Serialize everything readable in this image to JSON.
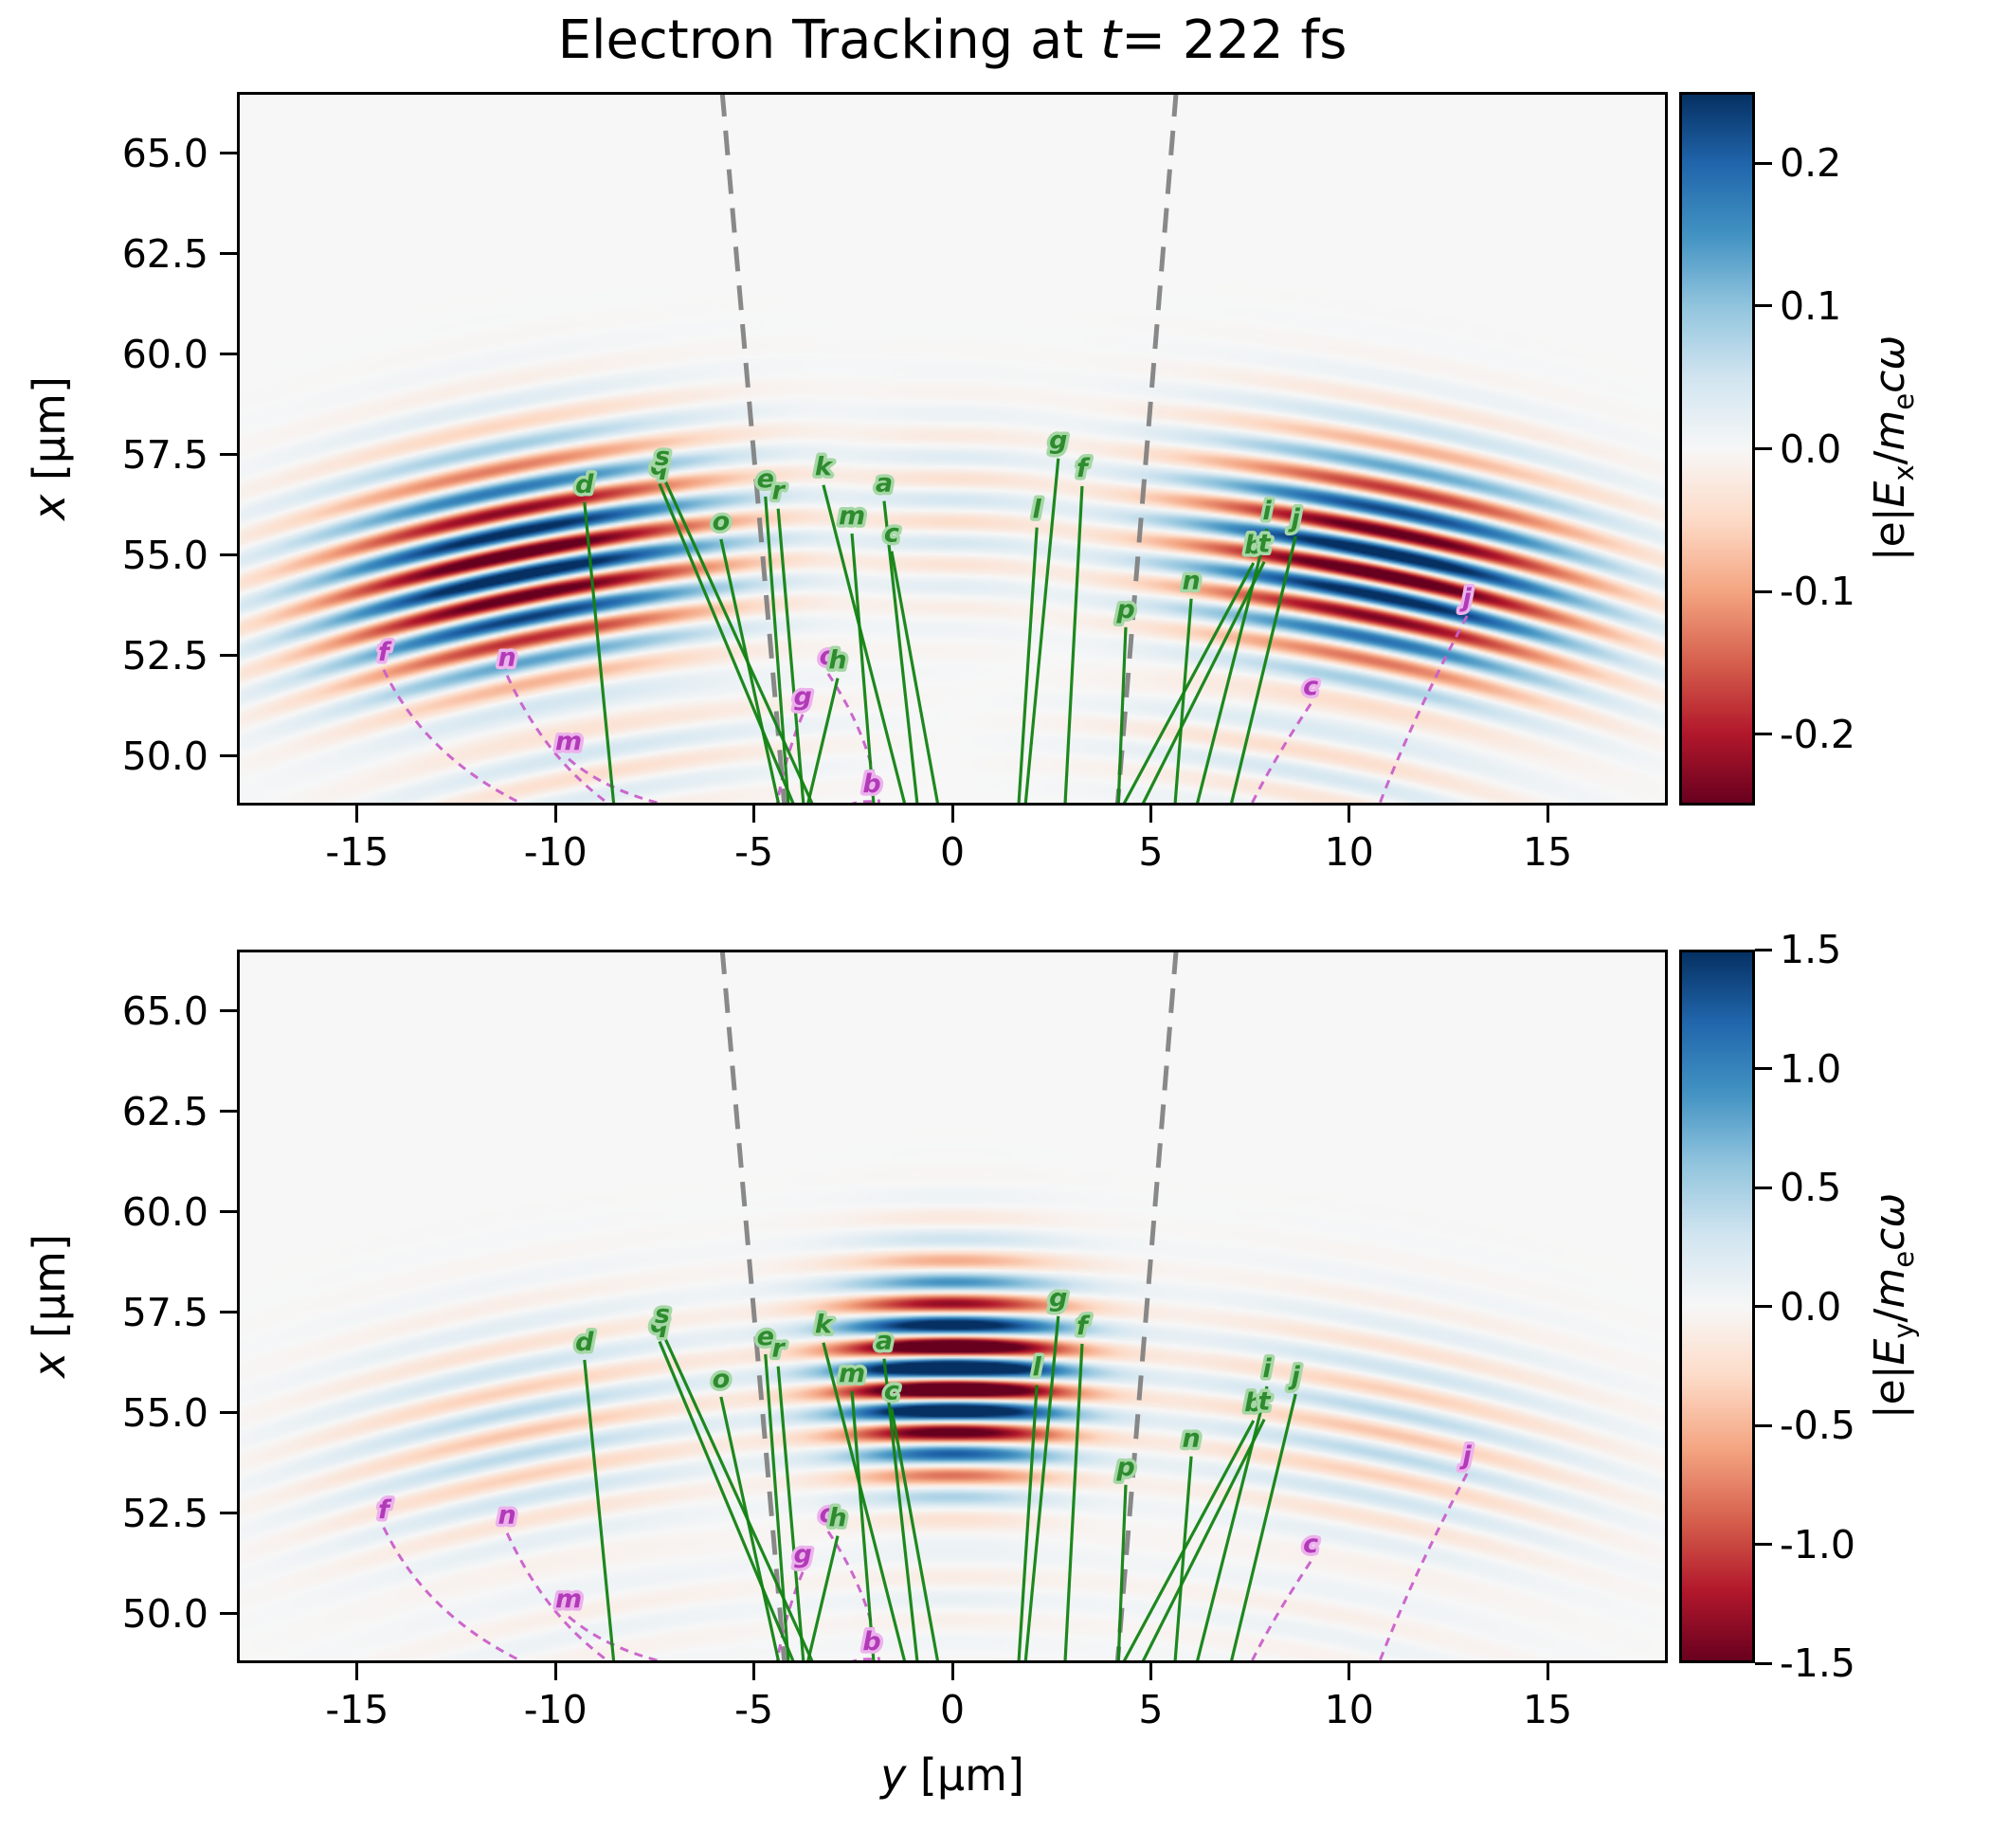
{
  "ui": {
    "title": {
      "pre": "Electron Tracking at ",
      "var": "t",
      "post": "= 222 fs"
    },
    "ylabel": {
      "var": "x",
      "rest": " [μm]"
    },
    "xlabel": {
      "var": "y",
      "rest": " [μm]"
    },
    "cbar_ex": {
      "pre": "|e|",
      "E": "E",
      "Esub": "x",
      "slash": "/",
      "m": "m",
      "msub": "e",
      "tail": "cω"
    },
    "cbar_ey": {
      "pre": "|e|",
      "E": "E",
      "Esub": "y",
      "slash": "/",
      "m": "m",
      "msub": "e",
      "tail": "cω"
    }
  },
  "chart_data": {
    "type": "heatmap",
    "title": "Electron Tracking at t= 222 fs",
    "time_fs": 222,
    "xlabel": "y [μm]",
    "ylabel": "x [μm]",
    "xlim": [
      -18.03,
      18.03
    ],
    "ylim": [
      48.77,
      66.53
    ],
    "xticks": [
      {
        "v": -15,
        "label": "-15"
      },
      {
        "v": -10,
        "label": "-10"
      },
      {
        "v": -5,
        "label": "-5"
      },
      {
        "v": 0,
        "label": "0"
      },
      {
        "v": 5,
        "label": "5"
      },
      {
        "v": 10,
        "label": "10"
      },
      {
        "v": 15,
        "label": "15"
      }
    ],
    "yticks": [
      {
        "v": 65.0,
        "label": "65.0"
      },
      {
        "v": 62.5,
        "label": "62.5"
      },
      {
        "v": 60.0,
        "label": "60.0"
      },
      {
        "v": 57.5,
        "label": "57.5"
      },
      {
        "v": 55.0,
        "label": "55.0"
      },
      {
        "v": 52.5,
        "label": "52.5"
      },
      {
        "v": 50.0,
        "label": "50.0"
      }
    ],
    "wavelength_um": 1.08,
    "wavefront_center": [
      0,
      0
    ],
    "colormap": "RdBu_r",
    "colormap_stops": [
      "#67001f",
      "#b2182b",
      "#d6604d",
      "#f4a582",
      "#fddbc7",
      "#f7f7f7",
      "#d1e5f0",
      "#92c5de",
      "#4393c3",
      "#2166ac",
      "#053061"
    ],
    "panels": [
      {
        "name": "Ex",
        "colorbar_label": "|e|Ex/mecω",
        "clim": [
          -0.25,
          0.25
        ],
        "cticks": [
          {
            "v": 0.2,
            "label": "0.2"
          },
          {
            "v": 0.1,
            "label": "0.1"
          },
          {
            "v": 0.0,
            "label": "0.0"
          },
          {
            "v": -0.1,
            "label": "-0.1"
          },
          {
            "v": -0.2,
            "label": "-0.2"
          }
        ],
        "components": [
          {
            "th": -11.3,
            "sth": 5.2,
            "r0": 55.8,
            "sr": 2.7,
            "amp": -0.3,
            "ph": 1.8
          },
          {
            "th": 11.3,
            "sth": 5.2,
            "r0": 55.8,
            "sr": 2.7,
            "amp": 0.3,
            "ph": 1.8
          },
          {
            "th": 0,
            "sth": 3.0,
            "r0": 56.0,
            "sr": 2.4,
            "amp": 0.045,
            "ph": 0.3
          },
          {
            "th": -10.5,
            "sth": 6.0,
            "r0": 50.9,
            "sr": 1.7,
            "amp": -0.05,
            "ph": 4.0
          },
          {
            "th": 10.5,
            "sth": 6.0,
            "r0": 50.9,
            "sr": 1.7,
            "amp": 0.05,
            "ph": 4.0
          }
        ]
      },
      {
        "name": "Ey",
        "colorbar_label": "|e|Ey/mecω",
        "clim": [
          -1.5,
          1.5
        ],
        "cticks": [
          {
            "v": 1.5,
            "label": "1.5"
          },
          {
            "v": 1.0,
            "label": "1.0"
          },
          {
            "v": 0.5,
            "label": "0.5"
          },
          {
            "v": 0.0,
            "label": "0.0"
          },
          {
            "v": -0.5,
            "label": "-0.5"
          },
          {
            "v": -1.0,
            "label": "-1.0"
          },
          {
            "v": -1.5,
            "label": "-1.5"
          }
        ],
        "components": [
          {
            "th": 0,
            "sth": 2.9,
            "r0": 55.9,
            "sr": 2.4,
            "amp": 2.4,
            "ph": 1.8
          },
          {
            "th": -11.3,
            "sth": 5.2,
            "r0": 55.6,
            "sr": 2.7,
            "amp": 0.42,
            "ph": 1.8
          },
          {
            "th": 11.3,
            "sth": 5.2,
            "r0": 55.6,
            "sr": 2.7,
            "amp": 0.42,
            "ph": 1.8
          },
          {
            "th": 0,
            "sth": 3.2,
            "r0": 50.9,
            "sr": 1.7,
            "amp": 0.12,
            "ph": 4.0
          },
          {
            "th": -10.5,
            "sth": 6.0,
            "r0": 50.9,
            "sr": 1.7,
            "amp": 0.1,
            "ph": 4.0
          },
          {
            "th": 10.5,
            "sth": 6.0,
            "r0": 50.9,
            "sr": 1.7,
            "amp": 0.1,
            "ph": 4.0
          }
        ]
      }
    ],
    "cone_lines": [
      {
        "y_top": -5.8,
        "y_bottom": -4.23
      },
      {
        "y_top": 5.64,
        "y_bottom": 4.16
      }
    ],
    "tracks": {
      "green": [
        {
          "label": "a",
          "tip": [
            -1.72,
            56.49
          ],
          "base_y": -0.88
        },
        {
          "label": "b",
          "tip": [
            7.59,
            54.95
          ],
          "base_y": 4.3
        },
        {
          "label": "c",
          "tip": [
            -1.53,
            55.24
          ],
          "base_y": -0.36
        },
        {
          "label": "d",
          "tip": [
            -9.27,
            56.46
          ],
          "base_y": -8.53
        },
        {
          "label": "e",
          "tip": [
            -4.71,
            56.6
          ],
          "base_y": -4.13
        },
        {
          "label": "f",
          "tip": [
            3.27,
            56.86
          ],
          "base_y": 2.84
        },
        {
          "label": "g",
          "tip": [
            2.67,
            57.55
          ],
          "base_y": 1.84
        },
        {
          "label": "h",
          "tip": [
            -2.89,
            52.08
          ],
          "base_y": -3.65
        },
        {
          "label": "i",
          "tip": [
            7.93,
            55.8
          ],
          "base_y": 6.16
        },
        {
          "label": "j",
          "tip": [
            8.65,
            55.61
          ],
          "base_y": 7.02
        },
        {
          "label": "k",
          "tip": [
            -3.25,
            56.89
          ],
          "base_y": -1.19
        },
        {
          "label": "l",
          "tip": [
            2.13,
            55.83
          ],
          "base_y": 1.67
        },
        {
          "label": "m",
          "tip": [
            -2.53,
            55.68
          ],
          "base_y": -1.98
        },
        {
          "label": "n",
          "tip": [
            6.02,
            54.06
          ],
          "base_y": 5.61
        },
        {
          "label": "o",
          "tip": [
            -5.83,
            55.54
          ],
          "base_y": -4.37
        },
        {
          "label": "p",
          "tip": [
            4.37,
            53.35
          ],
          "base_y": 4.18
        },
        {
          "label": "q",
          "tip": [
            -7.38,
            56.92
          ],
          "base_y": -3.99
        },
        {
          "label": "r",
          "tip": [
            -4.39,
            56.3
          ],
          "base_y": -3.75
        },
        {
          "label": "s",
          "tip": [
            -7.31,
            57.15
          ],
          "base_y": -3.51
        },
        {
          "label": "t",
          "tip": [
            7.86,
            54.98
          ],
          "base_y": 4.78
        }
      ],
      "magenta": [
        {
          "label": "b",
          "tip": [
            -2.03,
            49.01
          ],
          "ctrl": [
            -2.39,
            48.88
          ],
          "end": [
            -2.63,
            48.77
          ]
        },
        {
          "label": "c",
          "tip": [
            9.03,
            51.44
          ],
          "ctrl": [
            8.12,
            49.95
          ],
          "end": [
            7.52,
            48.77
          ]
        },
        {
          "label": "f",
          "tip": [
            -14.33,
            52.29
          ],
          "ctrl": [
            -13.26,
            49.95
          ],
          "end": [
            -10.75,
            48.77
          ]
        },
        {
          "label": "g",
          "tip": [
            -3.77,
            51.18
          ],
          "ctrl": [
            -4.23,
            49.95
          ],
          "end": [
            -4.42,
            48.77
          ]
        },
        {
          "label": "j",
          "tip": [
            12.97,
            53.63
          ],
          "ctrl": [
            11.58,
            50.9
          ],
          "end": [
            10.75,
            48.77
          ]
        },
        {
          "label": "m",
          "tip": [
            -9.67,
            50.07
          ],
          "ctrl": [
            -8.72,
            49.13
          ],
          "end": [
            -7.16,
            48.77
          ]
        },
        {
          "label": "n",
          "tip": [
            -11.22,
            52.15
          ],
          "ctrl": [
            -10.27,
            49.95
          ],
          "end": [
            -8.6,
            48.77
          ]
        },
        {
          "label": "o",
          "tip": [
            -3.13,
            52.19
          ],
          "ctrl": [
            -2.03,
            50.42
          ],
          "end": [
            -1.84,
            48.77
          ]
        }
      ]
    },
    "colors": {
      "green_line": "#128212",
      "green_label": "#2e8b2e",
      "green_halo": "#a6d7a6",
      "magenta_line": "#c95fc9",
      "magenta_label": "#b23ab8",
      "magenta_halo": "#ecb2ec",
      "cone": "#7d7d7d",
      "spine": "#000000",
      "panel_bg": "#f7f6f5"
    }
  }
}
